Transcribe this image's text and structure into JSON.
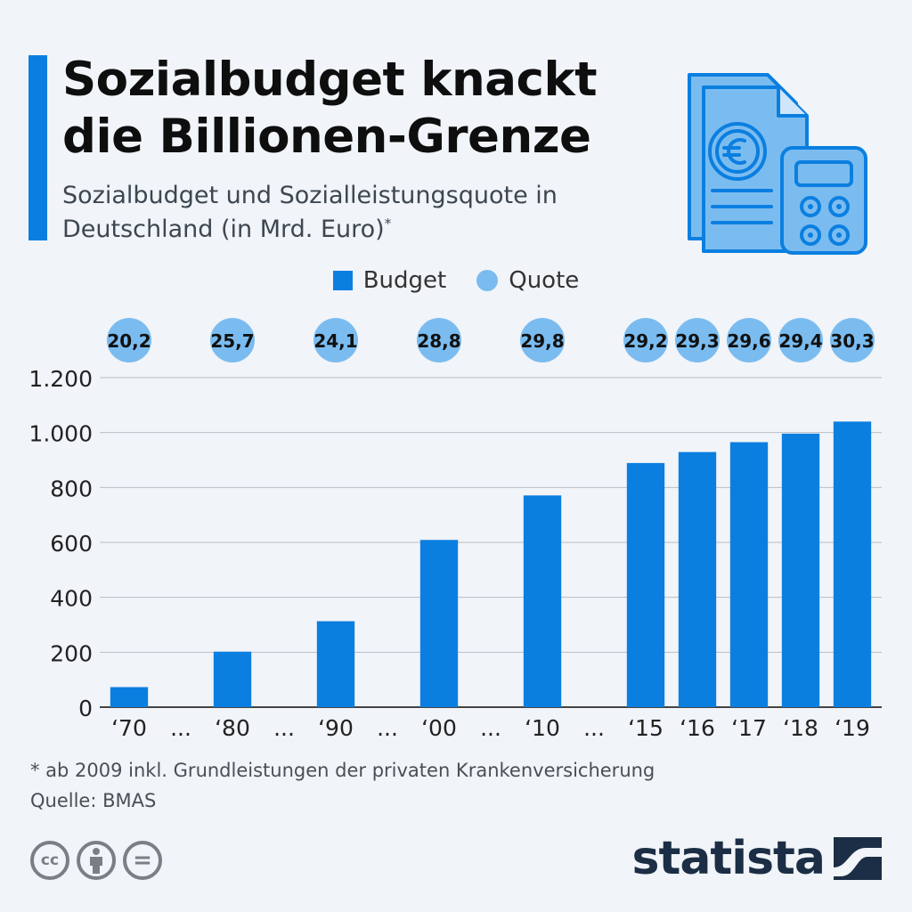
{
  "header": {
    "title": "Sozialbudget knackt die Billionen-Grenze",
    "subtitle": "Sozialbudget und Sozialleistungsquote in Deutschland (in Mrd. Euro)",
    "subtitle_marker": "*",
    "icon": "euro-document-calculator-icon"
  },
  "legend": {
    "budget_label": "Budget",
    "quote_label": "Quote"
  },
  "chart_data": {
    "type": "bar",
    "title": "Sozialbudget knackt die Billionen-Grenze",
    "xlabel": "",
    "ylabel": "",
    "ylim": [
      0,
      1200
    ],
    "yticks": [
      0,
      200,
      400,
      600,
      800,
      1000,
      1200
    ],
    "ytick_labels": [
      "0",
      "200",
      "400",
      "600",
      "800",
      "1.000",
      "1.200"
    ],
    "categories": [
      "‘70",
      "‘80",
      "‘90",
      "‘00",
      "‘10",
      "‘15",
      "‘16",
      "‘17",
      "‘18",
      "‘19"
    ],
    "gap_label": "...",
    "gaps_after_index": [
      0,
      1,
      2,
      3,
      4
    ],
    "series": [
      {
        "name": "Budget",
        "color": "#0b7fe0",
        "values": [
          73,
          202,
          313,
          609,
          771,
          889,
          929,
          965,
          996,
          1040
        ]
      },
      {
        "name": "Quote",
        "color": "#7bbcf0",
        "labels": [
          "20,2",
          "25,7",
          "24,1",
          "28,8",
          "29,8",
          "29,2",
          "29,3",
          "29,6",
          "29,4",
          "30,3"
        ]
      }
    ],
    "grid": true
  },
  "footer": {
    "footnote": "* ab 2009 inkl. Grundleistungen der privaten Krankenversicherung",
    "source": "Quelle: BMAS",
    "license_icons": [
      "cc-icon",
      "attribution-icon",
      "no-derivatives-icon"
    ],
    "cc_glyph": "cc",
    "nd_glyph": "=",
    "brand": "statista"
  },
  "colors": {
    "accent": "#0b7fe0",
    "quote_bubble": "#7bbcf0",
    "background": "#f1f4f8",
    "brand": "#1b2e45"
  }
}
